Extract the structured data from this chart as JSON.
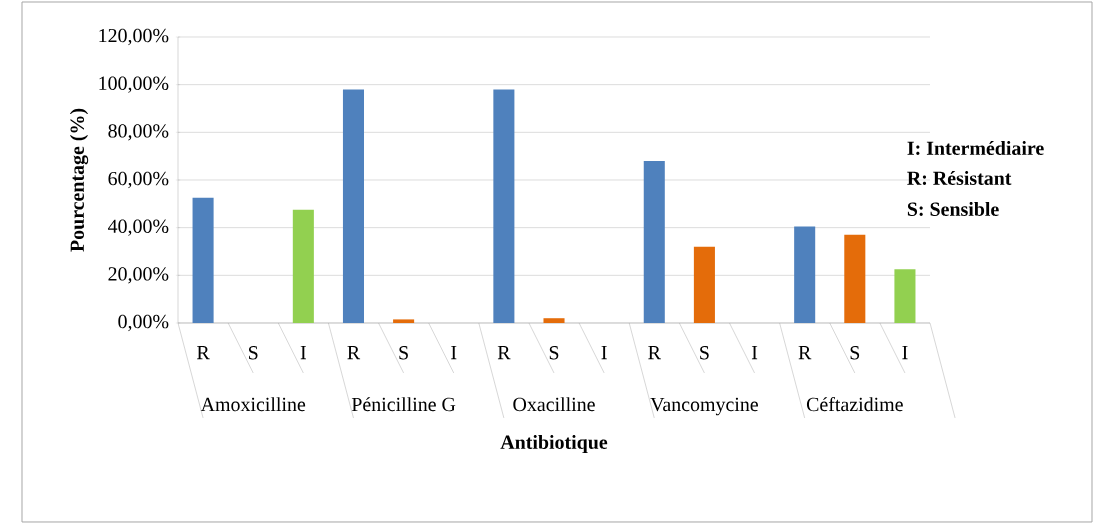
{
  "chart_data": {
    "type": "bar",
    "categories": [
      "R",
      "S",
      "I",
      "R",
      "S",
      "I",
      "R",
      "S",
      "I",
      "R",
      "S",
      "I",
      "R",
      "S",
      "I"
    ],
    "values": [
      52.5,
      0,
      47.5,
      98,
      1.5,
      0,
      98,
      2,
      0,
      68,
      32,
      0,
      40.5,
      37,
      22.5
    ],
    "colors": [
      "#4f81bd",
      "#e46c0a",
      "#92d050",
      "#4f81bd",
      "#e46c0a",
      "#92d050",
      "#4f81bd",
      "#e46c0a",
      "#92d050",
      "#4f81bd",
      "#e46c0a",
      "#92d050",
      "#4f81bd",
      "#e46c0a",
      "#92d050"
    ],
    "xlabel": "Antibiotique",
    "ylabel": "Pourcentage (%)",
    "ylim": [
      0,
      120
    ],
    "yticks": [
      {
        "value": 0,
        "label": "0,00%"
      },
      {
        "value": 20,
        "label": "20,00%"
      },
      {
        "value": 40,
        "label": "40,00%"
      },
      {
        "value": 60,
        "label": "60,00%"
      },
      {
        "value": 80,
        "label": "80,00%"
      },
      {
        "value": 100,
        "label": "100,00%"
      },
      {
        "value": 120,
        "label": "120,00%"
      }
    ],
    "grid": "y",
    "annotations": [
      "Amoxicilline",
      "Pénicilline G",
      "Oxacilline",
      "Vancomycine",
      "Céftazidime",
      "I: Intermédiaire",
      "R: Résistant",
      "S: Sensible"
    ]
  }
}
